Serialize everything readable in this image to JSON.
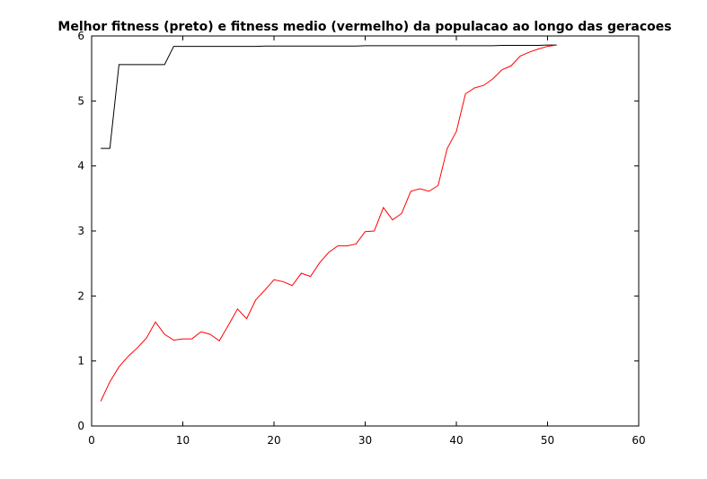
{
  "chart_data": {
    "type": "line",
    "title": "Melhor fitness (preto) e fitness medio (vermelho) da populacao ao longo das geracoes",
    "xlabel": "",
    "ylabel": "",
    "xlim": [
      0,
      60
    ],
    "ylim": [
      0,
      6
    ],
    "grid": false,
    "legend": "none",
    "xticks": [
      0,
      10,
      20,
      30,
      40,
      50,
      60
    ],
    "yticks": [
      0,
      1,
      2,
      3,
      4,
      5,
      6
    ],
    "series": [
      {
        "color": "#000000",
        "x": [
          1,
          2,
          3,
          4,
          5,
          6,
          7,
          8,
          9,
          10,
          11,
          12,
          13,
          14,
          15,
          16,
          17,
          18,
          19,
          20,
          21,
          22,
          23,
          24,
          25,
          26,
          27,
          28,
          29,
          30,
          31,
          32,
          33,
          34,
          35,
          36,
          37,
          38,
          39,
          40,
          41,
          42,
          43,
          44,
          45,
          46,
          47,
          48,
          49,
          50,
          51
        ],
        "y": [
          4.27,
          4.27,
          5.56,
          5.56,
          5.56,
          5.56,
          5.56,
          5.56,
          5.84,
          5.84,
          5.84,
          5.84,
          5.84,
          5.84,
          5.84,
          5.84,
          5.84,
          5.84,
          5.845,
          5.845,
          5.845,
          5.845,
          5.845,
          5.845,
          5.845,
          5.845,
          5.845,
          5.845,
          5.845,
          5.85,
          5.85,
          5.85,
          5.85,
          5.85,
          5.85,
          5.85,
          5.85,
          5.85,
          5.85,
          5.85,
          5.85,
          5.85,
          5.85,
          5.85,
          5.855,
          5.855,
          5.855,
          5.855,
          5.855,
          5.86,
          5.86
        ]
      },
      {
        "color": "#ff0000",
        "x": [
          1,
          2,
          3,
          4,
          5,
          6,
          7,
          8,
          9,
          10,
          11,
          12,
          13,
          14,
          15,
          16,
          17,
          18,
          19,
          20,
          21,
          22,
          23,
          24,
          25,
          26,
          27,
          28,
          29,
          30,
          31,
          32,
          33,
          34,
          35,
          36,
          37,
          38,
          39,
          40,
          41,
          42,
          43,
          44,
          45,
          46,
          47,
          48,
          49,
          50,
          51
        ],
        "y": [
          0.38,
          0.68,
          0.91,
          1.07,
          1.2,
          1.35,
          1.6,
          1.41,
          1.32,
          1.34,
          1.34,
          1.45,
          1.41,
          1.31,
          1.55,
          1.8,
          1.65,
          1.94,
          2.09,
          2.25,
          2.22,
          2.16,
          2.35,
          2.3,
          2.51,
          2.67,
          2.77,
          2.77,
          2.8,
          2.99,
          3.0,
          3.36,
          3.17,
          3.27,
          3.61,
          3.65,
          3.61,
          3.7,
          4.27,
          4.53,
          5.11,
          5.2,
          5.24,
          5.34,
          5.48,
          5.54,
          5.69,
          5.75,
          5.8,
          5.84,
          5.86
        ]
      }
    ]
  }
}
